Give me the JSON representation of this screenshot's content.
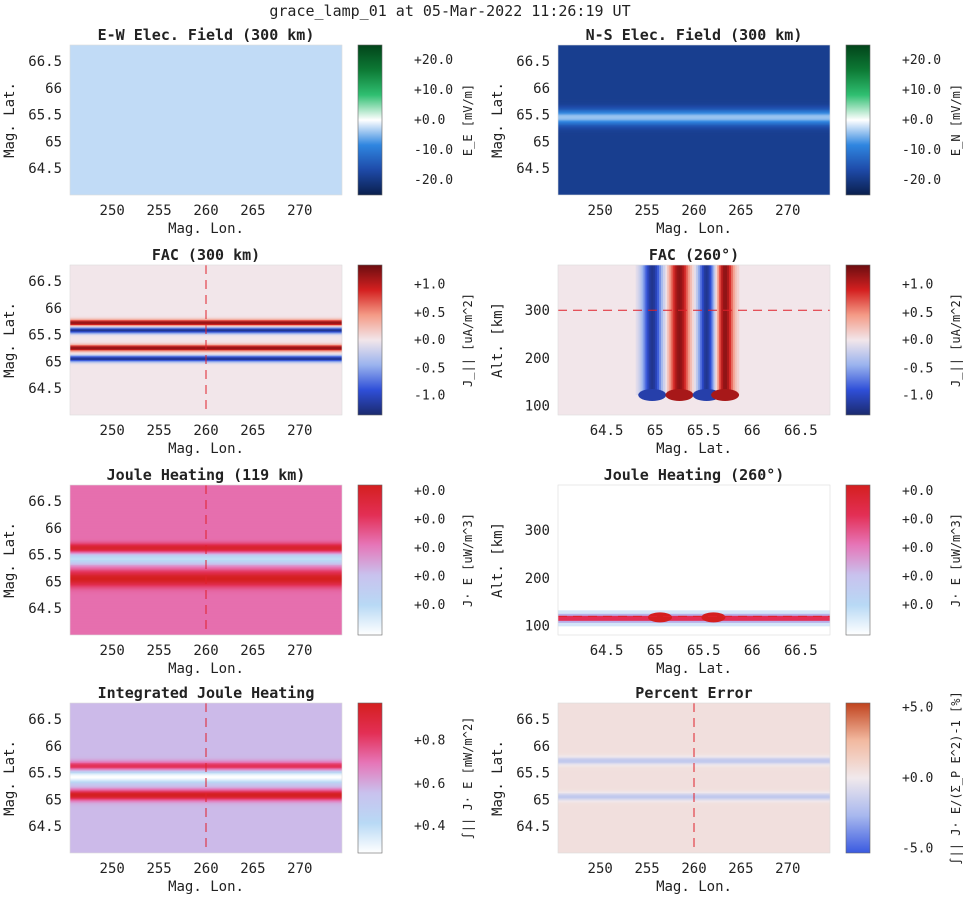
{
  "figure": {
    "suptitle": "grace_lamp_01 at 05-Mar-2022 11:26:19 UT"
  },
  "palettes": {
    "green_blue": [
      "#0a1f4d",
      "#1e4aa8",
      "#2f86e0",
      "#ffffff",
      "#2fbf71",
      "#0d7a35",
      "#02441a"
    ],
    "red_blue": [
      "#1b2a6e",
      "#2f4fd8",
      "#9ab3ee",
      "#f2e6ea",
      "#f49a86",
      "#d42020",
      "#6b0d10"
    ],
    "joule": [
      "#ffffff",
      "#b8d9f5",
      "#c9c2ee",
      "#e676b8",
      "#e32f55",
      "#d41f1f"
    ],
    "error": [
      "#3a5ae0",
      "#a8b8ee",
      "#f1e9ec",
      "#f2b9a0",
      "#c0431e"
    ]
  },
  "chart_data": [
    {
      "id": "ew",
      "type": "heatmap",
      "title": "E-W Elec. Field (300 km)",
      "xlabel": "Mag. Lon.",
      "ylabel": "Mag. Lat.",
      "xlim": [
        245.5,
        274.5
      ],
      "ylim": [
        64.0,
        66.8
      ],
      "xticks": [
        "250",
        "255",
        "260",
        "265",
        "270"
      ],
      "xtickvals": [
        250,
        255,
        260,
        265,
        270
      ],
      "yticks": [
        "64.5",
        "65",
        "65.5",
        "66",
        "66.5"
      ],
      "ytickvals": [
        64.5,
        65,
        65.5,
        66,
        66.5
      ],
      "field": {
        "base": 0.45,
        "bands": []
      },
      "guides": [],
      "colorbar": {
        "palette": "green_blue",
        "label": "E_E [mV/m]",
        "ticks": [
          "+20.0",
          "+10.0",
          "+0.0",
          "-10.0",
          "-20.0"
        ],
        "tickpos": [
          0.9,
          0.7,
          0.5,
          0.3,
          0.1
        ]
      }
    },
    {
      "id": "ns",
      "type": "heatmap",
      "title": "N-S Elec. Field (300 km)",
      "xlabel": "Mag. Lon.",
      "ylabel": "Mag. Lat.",
      "xlim": [
        245.5,
        274.5
      ],
      "ylim": [
        64.0,
        66.8
      ],
      "xticks": [
        "250",
        "255",
        "260",
        "265",
        "270"
      ],
      "xtickvals": [
        250,
        255,
        260,
        265,
        270
      ],
      "yticks": [
        "64.5",
        "65",
        "65.5",
        "66",
        "66.5"
      ],
      "ytickvals": [
        64.5,
        65,
        65.5,
        66,
        66.5
      ],
      "field": {
        "base": 0.12,
        "bands": [
          {
            "center": 65.45,
            "sigma": 0.1,
            "amp": 0.3
          }
        ]
      },
      "guides": [],
      "colorbar": {
        "palette": "green_blue",
        "label": "E_N [mV/m]",
        "ticks": [
          "+20.0",
          "+10.0",
          "+0.0",
          "-10.0",
          "-20.0"
        ],
        "tickpos": [
          0.9,
          0.7,
          0.5,
          0.3,
          0.1
        ]
      }
    },
    {
      "id": "fac300",
      "type": "heatmap",
      "title": "FAC (300 km)",
      "xlabel": "Mag. Lon.",
      "ylabel": "Mag. Lat.",
      "xlim": [
        245.5,
        274.5
      ],
      "ylim": [
        64.0,
        66.8
      ],
      "xticks": [
        "250",
        "255",
        "260",
        "265",
        "270"
      ],
      "xtickvals": [
        250,
        255,
        260,
        265,
        270
      ],
      "yticks": [
        "64.5",
        "65",
        "65.5",
        "66",
        "66.5"
      ],
      "ytickvals": [
        64.5,
        65,
        65.5,
        66,
        66.5
      ],
      "field": {
        "base": 0.5,
        "bands": [
          {
            "center": 65.72,
            "sigma": 0.04,
            "amp": 0.45
          },
          {
            "center": 65.58,
            "sigma": 0.04,
            "amp": -0.45
          },
          {
            "center": 65.25,
            "sigma": 0.04,
            "amp": 0.45
          },
          {
            "center": 65.05,
            "sigma": 0.04,
            "amp": -0.45
          }
        ]
      },
      "guides": [
        {
          "axis": "x",
          "value": 260
        }
      ],
      "colorbar": {
        "palette": "red_blue",
        "label": "J_|| [uA/m^2]",
        "ticks": [
          "+1.0",
          "+0.5",
          "+0.0",
          "-0.5",
          "-1.0"
        ],
        "tickpos": [
          0.87,
          0.68,
          0.5,
          0.31,
          0.13
        ]
      }
    },
    {
      "id": "fac260",
      "type": "heatmap",
      "title": "FAC (260°)",
      "xlabel": "Mag. Lat.",
      "ylabel": "Alt. [km]",
      "xlim": [
        64.0,
        66.8
      ],
      "ylim": [
        80,
        395
      ],
      "xticks": [
        "64.5",
        "65",
        "65.5",
        "66",
        "66.5"
      ],
      "xtickvals": [
        64.5,
        65,
        65.5,
        66,
        66.5
      ],
      "yticks": [
        "100",
        "200",
        "300"
      ],
      "ytickvals": [
        100,
        200,
        300
      ],
      "field": {
        "base": 0.5,
        "altmin": 122,
        "bands": [
          {
            "center": 64.97,
            "sigma": 0.07,
            "amp": -0.45
          },
          {
            "center": 65.25,
            "sigma": 0.07,
            "amp": 0.45
          },
          {
            "center": 65.53,
            "sigma": 0.06,
            "amp": -0.45
          },
          {
            "center": 65.72,
            "sigma": 0.06,
            "amp": 0.45
          }
        ]
      },
      "guides": [
        {
          "axis": "y",
          "value": 300
        }
      ],
      "colorbar": {
        "palette": "red_blue",
        "label": "J_|| [uA/m^2]",
        "ticks": [
          "+1.0",
          "+0.5",
          "+0.0",
          "-0.5",
          "-1.0"
        ],
        "tickpos": [
          0.87,
          0.68,
          0.5,
          0.31,
          0.13
        ]
      }
    },
    {
      "id": "jh119",
      "type": "heatmap",
      "title": "Joule Heating (119 km)",
      "xlabel": "Mag. Lon.",
      "ylabel": "Mag. Lat.",
      "xlim": [
        245.5,
        274.5
      ],
      "ylim": [
        64.0,
        66.8
      ],
      "xticks": [
        "250",
        "255",
        "260",
        "265",
        "270"
      ],
      "xtickvals": [
        250,
        255,
        260,
        265,
        270
      ],
      "yticks": [
        "64.5",
        "65",
        "65.5",
        "66",
        "66.5"
      ],
      "ytickvals": [
        64.5,
        65,
        65.5,
        66,
        66.5
      ],
      "field": {
        "base": 0.62,
        "bands": [
          {
            "center": 65.62,
            "sigma": 0.06,
            "amp": 0.35
          },
          {
            "center": 65.42,
            "sigma": 0.08,
            "amp": -0.45
          },
          {
            "center": 65.05,
            "sigma": 0.1,
            "amp": 0.38
          }
        ]
      },
      "guides": [
        {
          "axis": "x",
          "value": 260
        }
      ],
      "colorbar": {
        "palette": "joule",
        "label": "J· E [uW/m^3]",
        "ticks": [
          "+0.0",
          "+0.0",
          "+0.0",
          "+0.0",
          "+0.0"
        ],
        "tickpos": [
          0.96,
          0.77,
          0.58,
          0.39,
          0.2
        ]
      }
    },
    {
      "id": "jh260",
      "type": "heatmap",
      "title": "Joule Heating (260°)",
      "xlabel": "Mag. Lat.",
      "ylabel": "Alt. [km]",
      "xlim": [
        64.0,
        66.8
      ],
      "ylim": [
        80,
        395
      ],
      "xticks": [
        "64.5",
        "65",
        "65.5",
        "66",
        "66.5"
      ],
      "xtickvals": [
        64.5,
        65,
        65.5,
        66,
        66.5
      ],
      "yticks": [
        "100",
        "200",
        "300"
      ],
      "ytickvals": [
        100,
        200,
        300
      ],
      "field": {
        "layer": {
          "alt": 115,
          "width": 5,
          "halo": 16,
          "blobs": [
            65.05,
            65.6
          ]
        }
      },
      "guides": [
        {
          "axis": "y",
          "value": 119
        }
      ],
      "colorbar": {
        "palette": "joule",
        "label": "J· E [uW/m^3]",
        "ticks": [
          "+0.0",
          "+0.0",
          "+0.0",
          "+0.0",
          "+0.0"
        ],
        "tickpos": [
          0.96,
          0.77,
          0.58,
          0.39,
          0.2
        ]
      }
    },
    {
      "id": "ijh",
      "type": "heatmap",
      "title": "Integrated Joule Heating",
      "xlabel": "Mag. Lon.",
      "ylabel": "Mag. Lat.",
      "xlim": [
        245.5,
        274.5
      ],
      "ylim": [
        64.0,
        66.8
      ],
      "xticks": [
        "250",
        "255",
        "260",
        "265",
        "270"
      ],
      "xtickvals": [
        250,
        255,
        260,
        265,
        270
      ],
      "yticks": [
        "64.5",
        "65",
        "65.5",
        "66",
        "66.5"
      ],
      "ytickvals": [
        64.5,
        65,
        65.5,
        66,
        66.5
      ],
      "field": {
        "base": 0.42,
        "bands": [
          {
            "center": 65.62,
            "sigma": 0.06,
            "amp": 0.4
          },
          {
            "center": 65.42,
            "sigma": 0.08,
            "amp": -0.42
          },
          {
            "center": 65.08,
            "sigma": 0.07,
            "amp": 0.58
          }
        ]
      },
      "guides": [
        {
          "axis": "x",
          "value": 260
        }
      ],
      "colorbar": {
        "palette": "joule",
        "label": "∫|| J· E [mW/m^2]",
        "ticks": [
          "+0.8",
          "+0.6",
          "+0.4"
        ],
        "tickpos": [
          0.75,
          0.46,
          0.18
        ]
      }
    },
    {
      "id": "perr",
      "type": "heatmap",
      "title": "Percent Error",
      "xlabel": "Mag. Lon.",
      "ylabel": "Mag. Lat.",
      "xlim": [
        245.5,
        274.5
      ],
      "ylim": [
        64.0,
        66.8
      ],
      "xticks": [
        "250",
        "255",
        "260",
        "265",
        "270"
      ],
      "xtickvals": [
        250,
        255,
        260,
        265,
        270
      ],
      "yticks": [
        "64.5",
        "65",
        "65.5",
        "66",
        "66.5"
      ],
      "ytickvals": [
        64.5,
        65,
        65.5,
        66,
        66.5
      ],
      "field": {
        "base": 0.55,
        "bands": [
          {
            "center": 65.72,
            "sigma": 0.05,
            "amp": -0.22
          },
          {
            "center": 65.05,
            "sigma": 0.05,
            "amp": -0.22
          }
        ]
      },
      "guides": [
        {
          "axis": "x",
          "value": 260
        }
      ],
      "colorbar": {
        "palette": "error",
        "label": "∫|| J· E/(Σ_P E^2)-1 [%]",
        "ticks": [
          "+5.0",
          "+0.0",
          "-5.0"
        ],
        "tickpos": [
          0.97,
          0.5,
          0.03
        ]
      }
    }
  ]
}
